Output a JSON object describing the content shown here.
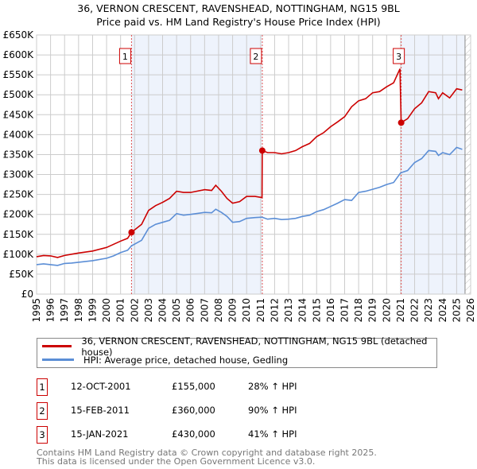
{
  "title": "36, VERNON CRESCENT, RAVENSHEAD, NOTTINGHAM, NG15 9BL",
  "subtitle": "Price paid vs. HM Land Registry's House Price Index (HPI)",
  "chart_data": {
    "type": "line",
    "xlim": [
      1995,
      2026
    ],
    "ylim": [
      0,
      650000
    ],
    "y_ticks": [
      0,
      50000,
      100000,
      150000,
      200000,
      250000,
      300000,
      350000,
      400000,
      450000,
      500000,
      550000,
      600000,
      650000
    ],
    "y_tick_labels": [
      "£0",
      "£50K",
      "£100K",
      "£150K",
      "£200K",
      "£250K",
      "£300K",
      "£350K",
      "£400K",
      "£450K",
      "£500K",
      "£550K",
      "£600K",
      "£650K"
    ],
    "x_ticks": [
      1995,
      1996,
      1997,
      1998,
      1999,
      2000,
      2001,
      2002,
      2003,
      2004,
      2005,
      2006,
      2007,
      2008,
      2009,
      2010,
      2011,
      2012,
      2013,
      2014,
      2015,
      2016,
      2017,
      2018,
      2019,
      2020,
      2021,
      2022,
      2023,
      2024,
      2025,
      2026
    ],
    "grid": true,
    "shaded_ranges": [
      [
        2001.78,
        2011.12
      ],
      [
        2021.04,
        2025.6
      ]
    ],
    "hatched_from": 2025.6,
    "colors": {
      "property": "#cc0000",
      "hpi": "#5b8ed6",
      "shade": "#eef3fc"
    },
    "series": [
      {
        "name": "36, VERNON CRESCENT, RAVENSHEAD, NOTTINGHAM, NG15 9BL (detached house)",
        "key": "property",
        "x": [
          1995,
          1995.5,
          1996,
          1996.5,
          1997,
          1997.5,
          1998,
          1999,
          2000,
          2000.5,
          2001,
          2001.5,
          2001.78,
          2002.5,
          2003,
          2003.5,
          2004,
          2004.5,
          2005,
          2005.5,
          2006,
          2007,
          2007.5,
          2007.8,
          2008.2,
          2008.6,
          2009,
          2009.5,
          2010,
          2010.6,
          2011.1,
          2011.12,
          2011.5,
          2012,
          2012.5,
          2013,
          2013.5,
          2014,
          2014.5,
          2015,
          2015.5,
          2016,
          2016.5,
          2017,
          2017.5,
          2018,
          2018.5,
          2019,
          2019.5,
          2020,
          2020.5,
          2020.95,
          2021.04,
          2021.5,
          2022,
          2022.5,
          2023,
          2023.5,
          2023.7,
          2024,
          2024.5,
          2025,
          2025.4
        ],
        "y": [
          94000,
          97000,
          96000,
          92000,
          97000,
          100000,
          103000,
          108000,
          117000,
          125000,
          133000,
          140000,
          155000,
          175000,
          210000,
          222000,
          230000,
          240000,
          258000,
          255000,
          255000,
          262000,
          260000,
          273000,
          258000,
          240000,
          228000,
          232000,
          245000,
          245000,
          242000,
          360000,
          355000,
          355000,
          352000,
          355000,
          360000,
          370000,
          378000,
          395000,
          405000,
          420000,
          432000,
          445000,
          470000,
          485000,
          490000,
          505000,
          508000,
          520000,
          530000,
          565000,
          430000,
          440000,
          465000,
          480000,
          508000,
          505000,
          490000,
          505000,
          492000,
          515000,
          512000
        ]
      },
      {
        "name": "HPI: Average price, detached house, Gedling",
        "key": "hpi",
        "x": [
          1995,
          1995.5,
          1996,
          1996.5,
          1997,
          1997.5,
          1998,
          1999,
          2000,
          2000.5,
          2001,
          2001.5,
          2001.78,
          2002.5,
          2003,
          2003.5,
          2004,
          2004.5,
          2005,
          2005.5,
          2006,
          2007,
          2007.5,
          2007.8,
          2008.2,
          2008.6,
          2009,
          2009.5,
          2010,
          2010.6,
          2011.1,
          2011.5,
          2012,
          2012.5,
          2013,
          2013.5,
          2014,
          2014.5,
          2015,
          2015.5,
          2016,
          2016.5,
          2017,
          2017.5,
          2018,
          2018.5,
          2019,
          2019.5,
          2020,
          2020.5,
          2021,
          2021.5,
          2022,
          2022.5,
          2023,
          2023.5,
          2023.7,
          2024,
          2024.5,
          2025,
          2025.4
        ],
        "y": [
          74000,
          76000,
          74000,
          72000,
          77000,
          78000,
          80000,
          84000,
          90000,
          96000,
          104000,
          110000,
          121000,
          135000,
          165000,
          175000,
          180000,
          185000,
          202000,
          198000,
          200000,
          205000,
          204000,
          213000,
          205000,
          195000,
          180000,
          182000,
          190000,
          192000,
          193000,
          188000,
          190000,
          187000,
          188000,
          190000,
          195000,
          198000,
          207000,
          212000,
          220000,
          228000,
          237000,
          235000,
          255000,
          258000,
          263000,
          268000,
          275000,
          280000,
          304000,
          310000,
          330000,
          340000,
          360000,
          358000,
          348000,
          355000,
          350000,
          368000,
          363000
        ]
      }
    ],
    "annotations": [
      {
        "label": "1",
        "x": 2001.78,
        "y": 155000
      },
      {
        "label": "2",
        "x": 2011.12,
        "y": 360000
      },
      {
        "label": "3",
        "x": 2021.04,
        "y": 430000
      }
    ]
  },
  "legend": [
    {
      "label": "36, VERNON CRESCENT, RAVENSHEAD, NOTTINGHAM, NG15 9BL (detached house)",
      "color": "#cc0000"
    },
    {
      "label": "HPI: Average price, detached house, Gedling",
      "color": "#5b8ed6"
    }
  ],
  "transactions": [
    {
      "num": "1",
      "date": "12-OCT-2001",
      "price": "£155,000",
      "hpi": "28% ↑ HPI"
    },
    {
      "num": "2",
      "date": "15-FEB-2011",
      "price": "£360,000",
      "hpi": "90% ↑ HPI"
    },
    {
      "num": "3",
      "date": "15-JAN-2021",
      "price": "£430,000",
      "hpi": "41% ↑ HPI"
    }
  ],
  "footer": [
    "Contains HM Land Registry data © Crown copyright and database right 2025.",
    "This data is licensed under the Open Government Licence v3.0."
  ]
}
